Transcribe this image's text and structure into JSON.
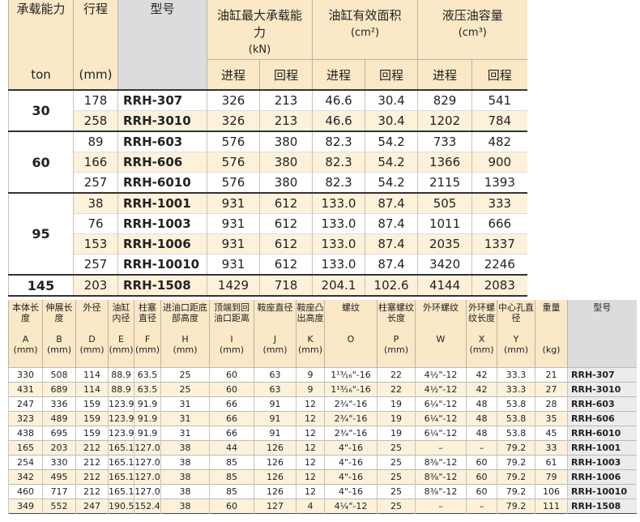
{
  "table1": {
    "header": {
      "capacity": "承载能力",
      "stroke": "行程",
      "model": "型号",
      "load": "油缸最大承载能力",
      "load_unit": "(kN)",
      "area": "油缸有效面积",
      "area_unit": "(cm²)",
      "oil": "液压油容量",
      "oil_unit": "(cm³)",
      "capacity_unit": "ton",
      "stroke_unit": "(mm)",
      "push": [
        "进程",
        "进程",
        "进程"
      ],
      "return": [
        "回程",
        "回程",
        "回程"
      ]
    },
    "groups": [
      {
        "capacity": "30",
        "rows": [
          [
            "178",
            "RRH-307",
            "326",
            "213",
            "46.6",
            "30.4",
            "829",
            "541"
          ],
          [
            "258",
            "RRH-3010",
            "326",
            "213",
            "46.6",
            "30.4",
            "1202",
            "784"
          ]
        ]
      },
      {
        "capacity": "60",
        "rows": [
          [
            "89",
            "RRH-603",
            "576",
            "380",
            "82.3",
            "54.2",
            "733",
            "482"
          ],
          [
            "166",
            "RRH-606",
            "576",
            "380",
            "82.3",
            "54.2",
            "1366",
            "900"
          ],
          [
            "257",
            "RRH-6010",
            "576",
            "380",
            "82.3",
            "54.2",
            "2115",
            "1393"
          ]
        ]
      },
      {
        "capacity": "95",
        "rows": [
          [
            "38",
            "RRH-1001",
            "931",
            "612",
            "133.0",
            "87.4",
            "505",
            "333"
          ],
          [
            "76",
            "RRH-1003",
            "931",
            "612",
            "133.0",
            "87.4",
            "1011",
            "666"
          ],
          [
            "153",
            "RRH-1006",
            "931",
            "612",
            "133.0",
            "87.4",
            "2035",
            "1337"
          ],
          [
            "257",
            "RRH-10010",
            "931",
            "612",
            "133.0",
            "87.4",
            "3420",
            "2246"
          ]
        ]
      },
      {
        "capacity": "145",
        "rows": [
          [
            "203",
            "RRH-1508",
            "1429",
            "718",
            "204.1",
            "102.6",
            "4144",
            "2083"
          ]
        ]
      }
    ]
  },
  "table2": {
    "columns": [
      {
        "name": "本体长度",
        "letter": "A",
        "unit": "(mm)"
      },
      {
        "name": "伸展长度",
        "letter": "B",
        "unit": "(mm)"
      },
      {
        "name": "外径",
        "letter": "D",
        "unit": "(mm)"
      },
      {
        "name": "油缸内径",
        "letter": "E",
        "unit": "(mm)"
      },
      {
        "name": "柱塞直径",
        "letter": "F",
        "unit": "(mm)"
      },
      {
        "name": "进油口距底部高度",
        "letter": "H",
        "unit": "(mm)"
      },
      {
        "name": "顶端到回油口距离",
        "letter": "I",
        "unit": "(mm)"
      },
      {
        "name": "鞍座直径",
        "letter": "J",
        "unit": "(mm)"
      },
      {
        "name": "鞍座凸出高度",
        "letter": "K",
        "unit": "(mm)"
      },
      {
        "name": "螺纹",
        "letter": "O"
      },
      {
        "name": "柱塞螺纹长度",
        "letter": "P",
        "unit": "(mm)"
      },
      {
        "name": "外环螺纹",
        "letter": "W"
      },
      {
        "name": "外环螺纹长度",
        "letter": "X",
        "unit": "(mm)"
      },
      {
        "name": "中心孔直径",
        "letter": "Y",
        "unit": "(mm)"
      },
      {
        "name": "重量",
        "unit": "(kg)"
      },
      {
        "name": "型号"
      }
    ],
    "rows": [
      [
        "330",
        "508",
        "114",
        "88.9",
        "63.5",
        "25",
        "60",
        "63",
        "9",
        "1¹³⁄₁₆\"-16",
        "22",
        "4½\"-12",
        "42",
        "33.3",
        "21",
        "RRH-307"
      ],
      [
        "431",
        "689",
        "114",
        "88.9",
        "63.5",
        "25",
        "60",
        "63",
        "9",
        "1¹³⁄₁₆\"-16",
        "22",
        "4½\"-12",
        "42",
        "33.3",
        "27",
        "RRH-3010"
      ],
      [
        "247",
        "336",
        "159",
        "123.9",
        "91.9",
        "31",
        "66",
        "91",
        "12",
        "2¾\"-16",
        "19",
        "6¼\"-12",
        "48",
        "53.8",
        "28",
        "RRH-603"
      ],
      [
        "323",
        "489",
        "159",
        "123.9",
        "91.9",
        "31",
        "66",
        "91",
        "12",
        "2¾\"-16",
        "19",
        "6¼\"-12",
        "48",
        "53.8",
        "35",
        "RRH-606"
      ],
      [
        "438",
        "695",
        "159",
        "123.9",
        "91.9",
        "31",
        "66",
        "91",
        "12",
        "2¾\"-16",
        "19",
        "6¼\"-12",
        "48",
        "53.8",
        "45",
        "RRH-6010"
      ],
      [
        "165",
        "203",
        "212",
        "165.1",
        "127.0",
        "38",
        "44",
        "126",
        "12",
        "4\"-16",
        "25",
        "–",
        "–",
        "79.2",
        "33",
        "RRH-1001"
      ],
      [
        "254",
        "330",
        "212",
        "165.1",
        "127.0",
        "38",
        "85",
        "126",
        "12",
        "4\"-16",
        "25",
        "8⅜\"-12",
        "60",
        "79.2",
        "61",
        "RRH-1003"
      ],
      [
        "342",
        "495",
        "212",
        "165.1",
        "127.0",
        "38",
        "85",
        "126",
        "12",
        "4\"-16",
        "25",
        "8⅜\"-12",
        "60",
        "79.2",
        "79",
        "RRH-1006"
      ],
      [
        "460",
        "717",
        "212",
        "165.1",
        "127.0",
        "38",
        "85",
        "126",
        "12",
        "4\"-16",
        "25",
        "8⅜\"-12",
        "60",
        "79.2",
        "106",
        "RRH-10010"
      ],
      [
        "349",
        "552",
        "247",
        "190.5",
        "152.4",
        "38",
        "60",
        "127",
        "4",
        "4¼\"-12",
        "25",
        "–",
        "–",
        "79.2",
        "111",
        "RRH-1508"
      ]
    ]
  }
}
